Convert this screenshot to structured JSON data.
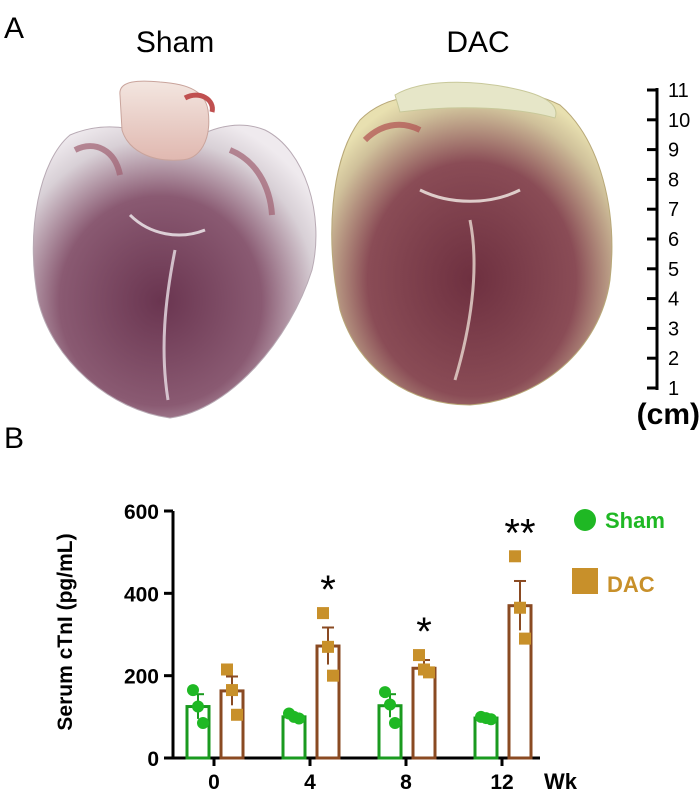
{
  "panel_a": {
    "label": "A",
    "sham_label": "Sham",
    "dac_label": "DAC",
    "ruler": {
      "ticks": [
        "11",
        "10",
        "9",
        "8",
        "7",
        "6",
        "5",
        "4",
        "3",
        "2",
        "1"
      ],
      "unit": "(cm)"
    }
  },
  "panel_b": {
    "label": "B",
    "legend": {
      "sham": "Sham",
      "dac": "DAC"
    },
    "x_unit": "Wk"
  },
  "colors": {
    "sham": "#1fb824",
    "sham_bar": "#1a9a1f",
    "dac": "#c8902a",
    "dac_bar": "#8a4a22"
  },
  "chart_data": {
    "type": "bar",
    "ylabel": "Serum cTnI (pg/mL)",
    "xlabel": "Wk",
    "ylim": [
      0,
      600
    ],
    "yticks": [
      0,
      200,
      400,
      600
    ],
    "categories": [
      "0",
      "4",
      "8",
      "12"
    ],
    "series": [
      {
        "name": "Sham",
        "values": [
          125,
          100,
          127,
          97
        ],
        "errors": [
          30,
          8,
          28,
          6
        ],
        "points": [
          [
            165,
            125,
            85
          ],
          [
            108,
            100,
            96
          ],
          [
            160,
            130,
            85
          ],
          [
            100,
            97,
            94
          ]
        ]
      },
      {
        "name": "DAC",
        "values": [
          163,
          272,
          218,
          370
        ],
        "errors": [
          35,
          45,
          20,
          60
        ],
        "points": [
          [
            215,
            165,
            105
          ],
          [
            352,
            270,
            200
          ],
          [
            250,
            215,
            208
          ],
          [
            490,
            365,
            290
          ]
        ]
      }
    ],
    "annotations": [
      "",
      "*",
      "*",
      "**"
    ]
  }
}
